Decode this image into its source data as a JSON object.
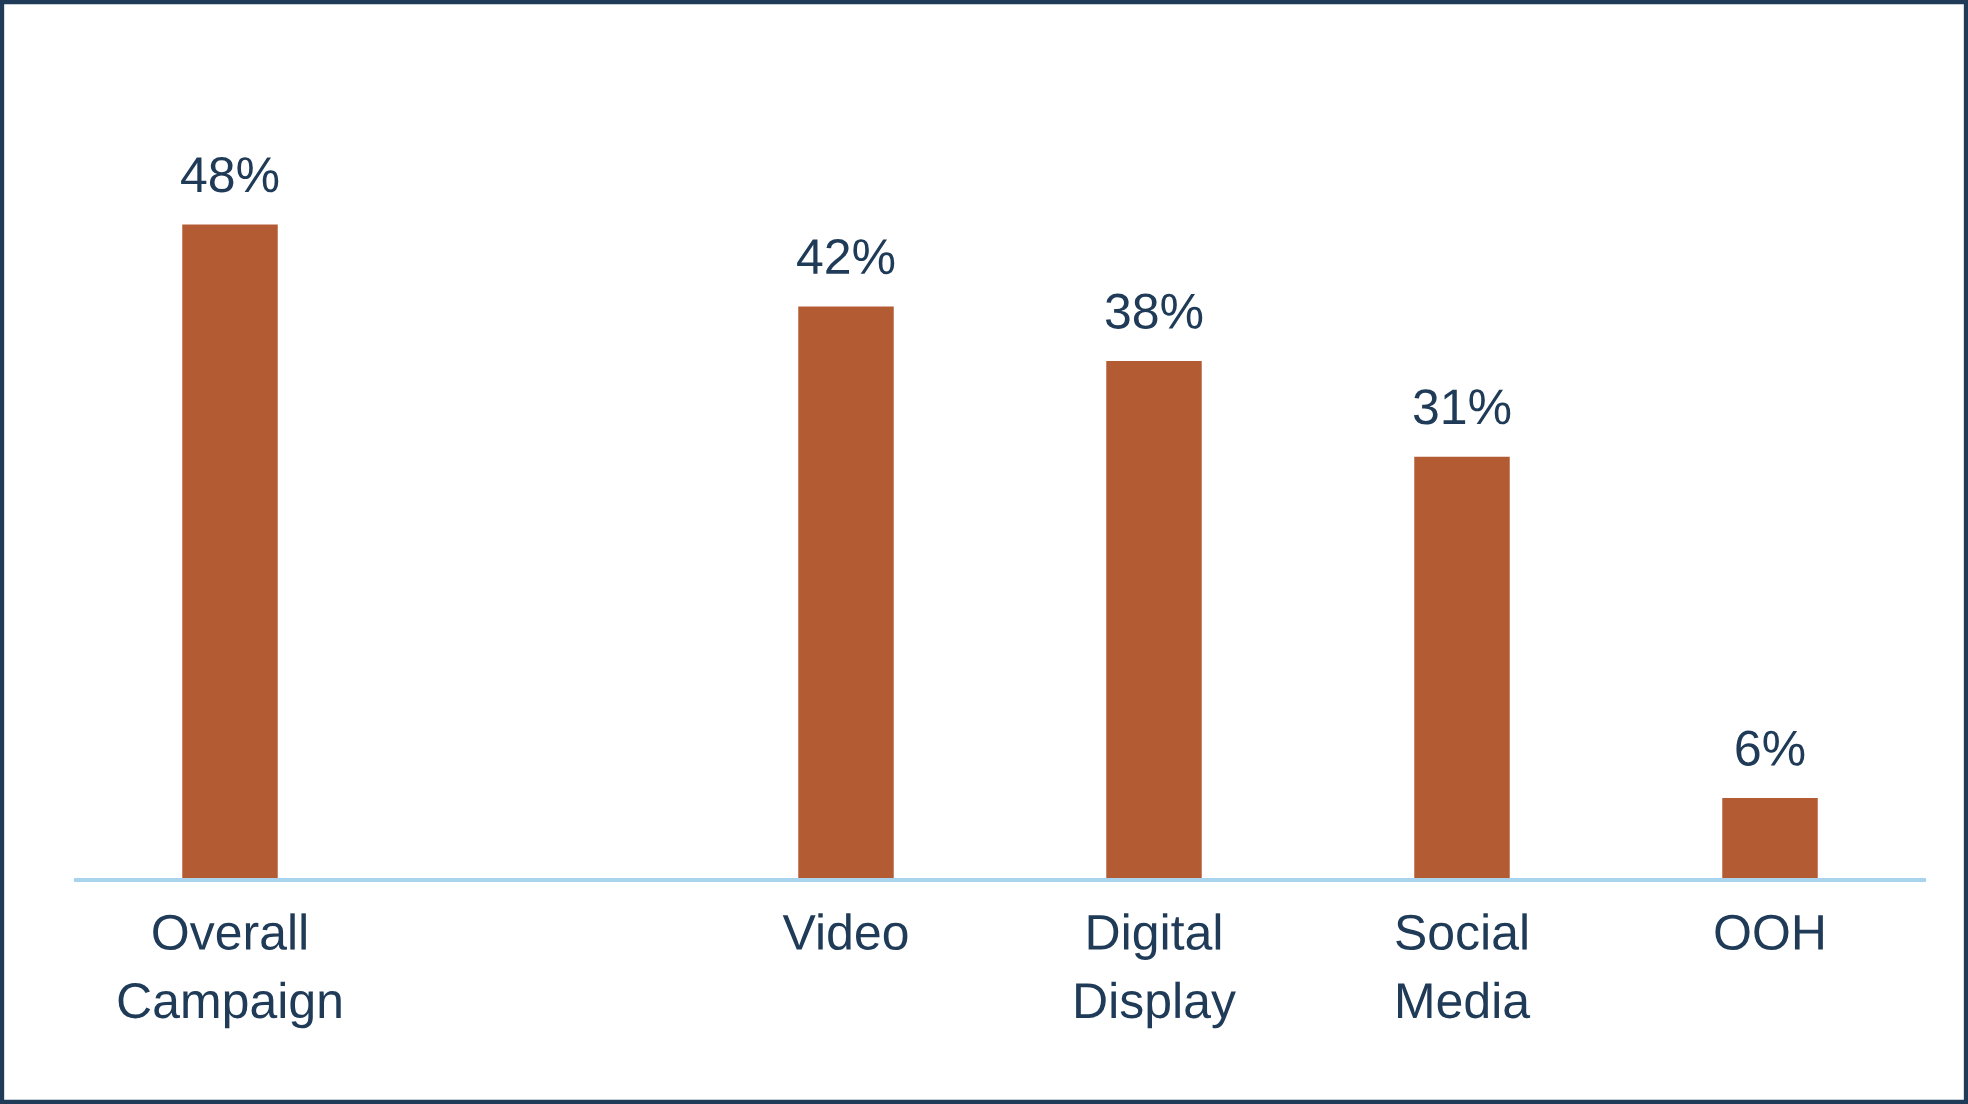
{
  "chart_data": {
    "type": "bar",
    "categories": [
      "Overall\nCampaign",
      null,
      "Video",
      "Digital\nDisplay",
      "Social\nMedia",
      "OOH"
    ],
    "values": [
      48,
      null,
      42,
      38,
      31,
      6
    ],
    "value_labels": [
      "48%",
      null,
      "42%",
      "38%",
      "31%",
      "6%"
    ],
    "color": "#b35c34",
    "grid": false,
    "legend": false
  }
}
